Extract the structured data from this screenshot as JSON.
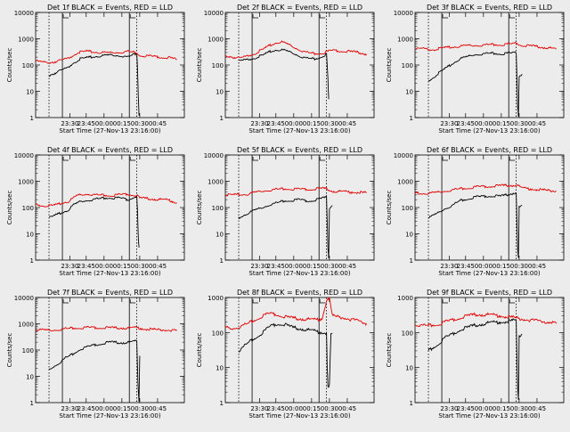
{
  "colors": {
    "events": "#000000",
    "lld": "#e00000",
    "background": "#ececec"
  },
  "chart_data": [
    {
      "type": "line",
      "title": "Det 1f BLACK = Events, RED = LLD",
      "xlabel": "Start Time (27-Nov-13 23:16:00)",
      "ylabel": "Counts/sec",
      "yscale": "log",
      "ylim": [
        1,
        10000
      ],
      "xlim": [
        0,
        100
      ],
      "x_ticks": [
        "23:30",
        "23:45",
        "00:00",
        "00:15",
        "00:30",
        "00:45"
      ],
      "y_ticks": [
        "1",
        "10",
        "100",
        "1000",
        "10000"
      ],
      "series": [
        {
          "name": "Events",
          "color": "black",
          "x": [
            9,
            15,
            18,
            22,
            25,
            30,
            40,
            50,
            58,
            62,
            63,
            64,
            66,
            68,
            68.5,
            69,
            69.5
          ],
          "y": [
            40,
            55,
            65,
            80,
            120,
            170,
            210,
            240,
            225,
            200,
            210,
            225,
            250,
            280,
            70,
            8,
            1.2
          ]
        },
        {
          "name": "LLD",
          "color": "red",
          "x": [
            0,
            5,
            10,
            15,
            18,
            22,
            28,
            35,
            42,
            50,
            58,
            62,
            66,
            68,
            70,
            80,
            90,
            95
          ],
          "y": [
            140,
            130,
            125,
            140,
            155,
            180,
            300,
            330,
            300,
            290,
            310,
            330,
            300,
            290,
            235,
            210,
            190,
            160
          ]
        }
      ]
    },
    {
      "type": "line",
      "title": "Det 2f BLACK = Events, RED = LLD",
      "xlabel": "Start Time (27-Nov-13 23:16:00)",
      "ylabel": "Counts/sec",
      "yscale": "log",
      "ylim": [
        1,
        10000
      ],
      "xlim": [
        0,
        100
      ],
      "x_ticks": [
        "23:30",
        "23:45",
        "00:00",
        "00:15",
        "00:30",
        "00:45"
      ],
      "y_ticks": [
        "1",
        "10",
        "100",
        "1000",
        "10000"
      ],
      "series": [
        {
          "name": "Events",
          "color": "black",
          "x": [
            9,
            15,
            20,
            25,
            30,
            35,
            40,
            45,
            50,
            55,
            60,
            63,
            66,
            68,
            69,
            69.5
          ],
          "y": [
            140,
            160,
            190,
            230,
            320,
            380,
            360,
            290,
            220,
            180,
            170,
            190,
            230,
            260,
            30,
            5
          ]
        },
        {
          "name": "LLD",
          "color": "red",
          "x": [
            0,
            5,
            10,
            15,
            20,
            25,
            30,
            35,
            38,
            42,
            48,
            55,
            60,
            66,
            68,
            72,
            80,
            90,
            95
          ],
          "y": [
            230,
            200,
            180,
            220,
            280,
            380,
            560,
            720,
            750,
            620,
            420,
            300,
            270,
            290,
            320,
            360,
            340,
            300,
            260
          ]
        }
      ]
    },
    {
      "type": "line",
      "title": "Det 3f BLACK = Events, RED = LLD",
      "xlabel": "Start Time (27-Nov-13 23:16:00)",
      "ylabel": "Counts/sec",
      "yscale": "log",
      "ylim": [
        1,
        10000
      ],
      "xlim": [
        0,
        100
      ],
      "x_ticks": [
        "23:30",
        "23:45",
        "00:00",
        "00:15",
        "00:30",
        "00:45"
      ],
      "y_ticks": [
        "1",
        "10",
        "100",
        "1000",
        "10000"
      ],
      "series": [
        {
          "name": "Events",
          "color": "black",
          "x": [
            9,
            15,
            20,
            25,
            30,
            40,
            50,
            58,
            63,
            66,
            68,
            68.5,
            69,
            69.5,
            70,
            72
          ],
          "y": [
            25,
            45,
            70,
            110,
            170,
            250,
            280,
            270,
            280,
            290,
            300,
            30,
            3,
            1.2,
            40,
            45
          ]
        },
        {
          "name": "LLD",
          "color": "red",
          "x": [
            0,
            5,
            10,
            15,
            20,
            28,
            35,
            42,
            50,
            58,
            62,
            66,
            68,
            72,
            80,
            90,
            95
          ],
          "y": [
            400,
            420,
            390,
            410,
            450,
            500,
            550,
            560,
            600,
            600,
            620,
            640,
            700,
            560,
            520,
            450,
            400
          ]
        }
      ]
    },
    {
      "type": "line",
      "title": "Det 4f BLACK = Events, RED = LLD",
      "xlabel": "Start Time (27-Nov-13 23:16:00)",
      "ylabel": "Counts/sec",
      "yscale": "log",
      "ylim": [
        1,
        10000
      ],
      "xlim": [
        0,
        100
      ],
      "x_ticks": [
        "23:30",
        "23:45",
        "00:00",
        "00:15",
        "00:30",
        "00:45"
      ],
      "y_ticks": [
        "1",
        "10",
        "100",
        "1000",
        "10000"
      ],
      "series": [
        {
          "name": "Events",
          "color": "black",
          "x": [
            9,
            15,
            18,
            22,
            25,
            30,
            40,
            50,
            58,
            62,
            66,
            68,
            68.5,
            69,
            69.5
          ],
          "y": [
            40,
            55,
            65,
            80,
            120,
            170,
            210,
            240,
            225,
            200,
            250,
            280,
            70,
            8,
            3
          ]
        },
        {
          "name": "LLD",
          "color": "red",
          "x": [
            0,
            5,
            10,
            15,
            18,
            22,
            28,
            35,
            42,
            50,
            58,
            62,
            66,
            68,
            70,
            80,
            90,
            95
          ],
          "y": [
            130,
            120,
            115,
            130,
            150,
            170,
            290,
            330,
            300,
            290,
            310,
            330,
            300,
            290,
            230,
            210,
            190,
            150
          ]
        }
      ]
    },
    {
      "type": "line",
      "title": "Det 5f BLACK = Events, RED = LLD",
      "xlabel": "Start Time (27-Nov-13 23:16:00)",
      "ylabel": "Counts/sec",
      "yscale": "log",
      "ylim": [
        1,
        10000
      ],
      "xlim": [
        0,
        100
      ],
      "x_ticks": [
        "23:30",
        "23:45",
        "00:00",
        "00:15",
        "00:30",
        "00:45"
      ],
      "y_ticks": [
        "1",
        "10",
        "100",
        "1000",
        "10000"
      ],
      "series": [
        {
          "name": "Events",
          "color": "black",
          "x": [
            9,
            15,
            20,
            25,
            30,
            40,
            50,
            55,
            60,
            66,
            68,
            68.5,
            69,
            69.5,
            70,
            72
          ],
          "y": [
            40,
            60,
            80,
            100,
            130,
            180,
            200,
            180,
            190,
            230,
            250,
            30,
            3,
            1.2,
            100,
            120
          ]
        },
        {
          "name": "LLD",
          "color": "red",
          "x": [
            0,
            5,
            10,
            15,
            20,
            28,
            35,
            42,
            50,
            58,
            62,
            66,
            68,
            72,
            80,
            90,
            95
          ],
          "y": [
            300,
            300,
            310,
            320,
            380,
            450,
            500,
            520,
            500,
            500,
            520,
            530,
            520,
            420,
            400,
            380,
            360
          ]
        }
      ]
    },
    {
      "type": "line",
      "title": "Det 6f BLACK = Events, RED = LLD",
      "xlabel": "Start Time (27-Nov-13 23:16:00)",
      "ylabel": "Counts/sec",
      "yscale": "log",
      "ylim": [
        1,
        10000
      ],
      "xlim": [
        0,
        100
      ],
      "x_ticks": [
        "23:30",
        "23:45",
        "00:00",
        "00:15",
        "00:30",
        "00:45"
      ],
      "y_ticks": [
        "1",
        "10",
        "100",
        "1000",
        "10000"
      ],
      "series": [
        {
          "name": "Events",
          "color": "black",
          "x": [
            9,
            15,
            20,
            25,
            30,
            40,
            50,
            58,
            63,
            68,
            68.5,
            69,
            69.5,
            70,
            72
          ],
          "y": [
            40,
            60,
            90,
            120,
            180,
            250,
            280,
            270,
            320,
            380,
            30,
            3,
            1.2,
            100,
            120
          ]
        },
        {
          "name": "LLD",
          "color": "red",
          "x": [
            0,
            5,
            10,
            15,
            20,
            28,
            35,
            42,
            50,
            58,
            62,
            66,
            68,
            72,
            80,
            90,
            95
          ],
          "y": [
            350,
            340,
            350,
            380,
            420,
            500,
            550,
            620,
            650,
            680,
            700,
            700,
            750,
            550,
            500,
            440,
            420
          ]
        }
      ]
    },
    {
      "type": "line",
      "title": "Det 7f BLACK = Events, RED = LLD",
      "xlabel": "Start Time (27-Nov-13 23:16:00)",
      "ylabel": "Counts/sec",
      "yscale": "log",
      "ylim": [
        1,
        10000
      ],
      "xlim": [
        0,
        100
      ],
      "x_ticks": [
        "23:30",
        "23:45",
        "00:00",
        "00:15",
        "00:30",
        "00:45"
      ],
      "y_ticks": [
        "1",
        "10",
        "100",
        "1000",
        "10000"
      ],
      "series": [
        {
          "name": "Events",
          "color": "black",
          "x": [
            9,
            15,
            20,
            25,
            30,
            40,
            50,
            58,
            63,
            66,
            68,
            68.5,
            69,
            69.5,
            70
          ],
          "y": [
            18,
            30,
            50,
            70,
            110,
            160,
            200,
            190,
            200,
            210,
            220,
            20,
            3,
            1.2,
            60
          ]
        },
        {
          "name": "LLD",
          "color": "red",
          "x": [
            0,
            5,
            10,
            15,
            20,
            28,
            35,
            42,
            50,
            58,
            62,
            66,
            68,
            72,
            80,
            90,
            95
          ],
          "y": [
            600,
            580,
            560,
            600,
            650,
            700,
            720,
            720,
            700,
            700,
            690,
            700,
            720,
            650,
            600,
            570,
            550
          ]
        }
      ]
    },
    {
      "type": "line",
      "title": "Det 8f BLACK = Events, RED = LLD",
      "xlabel": "Start Time (27-Nov-13 23:16:00)",
      "ylabel": "Counts/sec",
      "yscale": "log",
      "ylim": [
        1,
        1000
      ],
      "xlim": [
        0,
        100
      ],
      "x_ticks": [
        "23:30",
        "23:45",
        "00:00",
        "00:15",
        "00:30",
        "00:45"
      ],
      "y_ticks": [
        "1",
        "10",
        "100",
        "1000"
      ],
      "series": [
        {
          "name": "Events",
          "color": "black",
          "x": [
            9,
            15,
            20,
            25,
            30,
            35,
            40,
            45,
            50,
            55,
            60,
            65,
            68,
            68.5,
            69,
            70,
            71,
            72
          ],
          "y": [
            30,
            50,
            70,
            100,
            150,
            180,
            170,
            140,
            130,
            120,
            110,
            100,
            100,
            10,
            3,
            3,
            90,
            95
          ]
        },
        {
          "name": "LLD",
          "color": "red",
          "x": [
            0,
            5,
            10,
            15,
            20,
            25,
            30,
            35,
            40,
            45,
            50,
            55,
            60,
            65,
            68,
            69,
            70,
            72,
            80,
            90,
            95
          ],
          "y": [
            140,
            130,
            150,
            180,
            230,
            300,
            350,
            330,
            280,
            260,
            250,
            240,
            230,
            250,
            800,
            1000,
            900,
            300,
            260,
            210,
            180
          ]
        }
      ]
    },
    {
      "type": "line",
      "title": "Det 9f BLACK = Events, RED = LLD",
      "xlabel": "Start Time (27-Nov-13 23:16:00)",
      "ylabel": "Counts/sec",
      "yscale": "log",
      "ylim": [
        1,
        1000
      ],
      "xlim": [
        0,
        100
      ],
      "x_ticks": [
        "23:30",
        "23:45",
        "00:00",
        "00:15",
        "00:30",
        "00:45"
      ],
      "y_ticks": [
        "1",
        "10",
        "100",
        "1000"
      ],
      "series": [
        {
          "name": "Events",
          "color": "black",
          "x": [
            9,
            15,
            20,
            25,
            30,
            40,
            50,
            58,
            63,
            66,
            68,
            68.5,
            69,
            69.5,
            70,
            72
          ],
          "y": [
            30,
            45,
            70,
            90,
            120,
            160,
            190,
            200,
            210,
            220,
            230,
            20,
            3,
            1.2,
            80,
            90
          ]
        },
        {
          "name": "LLD",
          "color": "red",
          "x": [
            0,
            5,
            10,
            15,
            20,
            28,
            35,
            42,
            50,
            58,
            62,
            66,
            68,
            72,
            80,
            90,
            95
          ],
          "y": [
            170,
            160,
            160,
            170,
            200,
            250,
            300,
            330,
            320,
            300,
            280,
            270,
            260,
            240,
            220,
            200,
            180
          ]
        }
      ]
    }
  ]
}
